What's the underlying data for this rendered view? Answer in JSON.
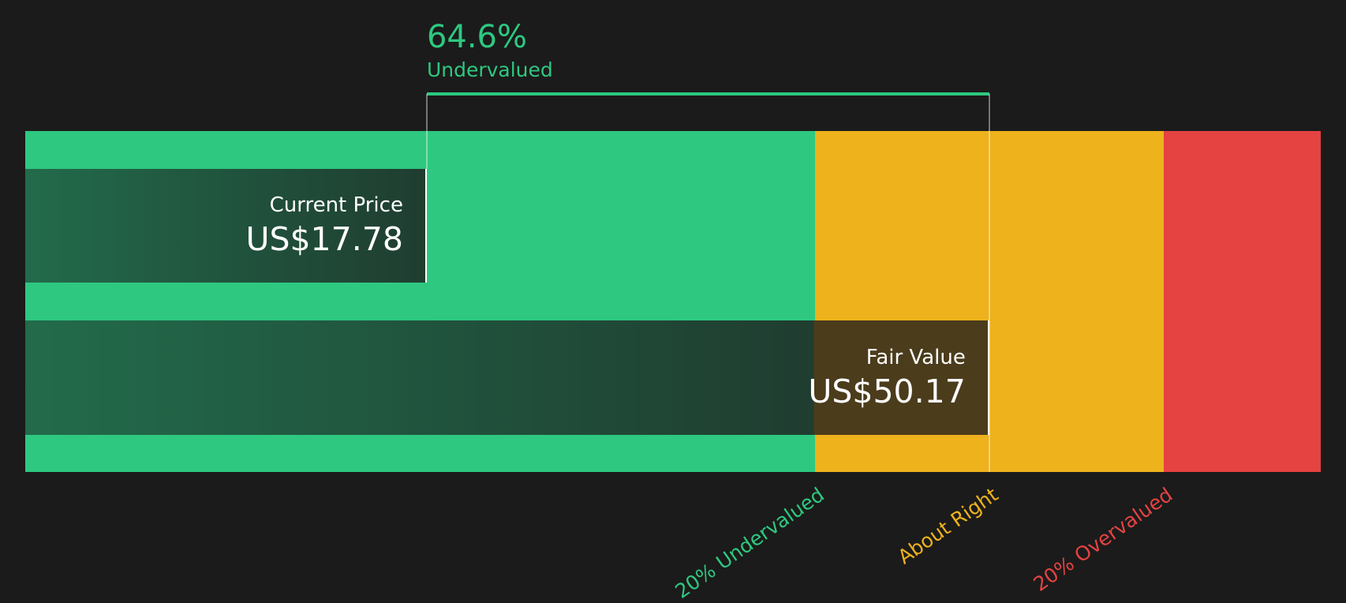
{
  "chart_data": {
    "type": "bar",
    "title": "",
    "headline": {
      "percent": "64.6%",
      "label": "Undervalued"
    },
    "current_price": {
      "label": "Current Price",
      "display": "US$17.78",
      "value": 17.78
    },
    "fair_value": {
      "label": "Fair Value",
      "display": "US$50.17",
      "value": 50.17
    },
    "zones": [
      {
        "label": "20% Undervalued",
        "color": "#2ec880",
        "end_ratio": 0.8
      },
      {
        "label": "About Right",
        "color": "#edb21c",
        "end_ratio": 1.2
      },
      {
        "label": "20% Overvalued",
        "color": "#e54242",
        "end_ratio": null
      }
    ],
    "colors": {
      "background": "#1b1b1b",
      "accent": "#2ec880"
    }
  }
}
